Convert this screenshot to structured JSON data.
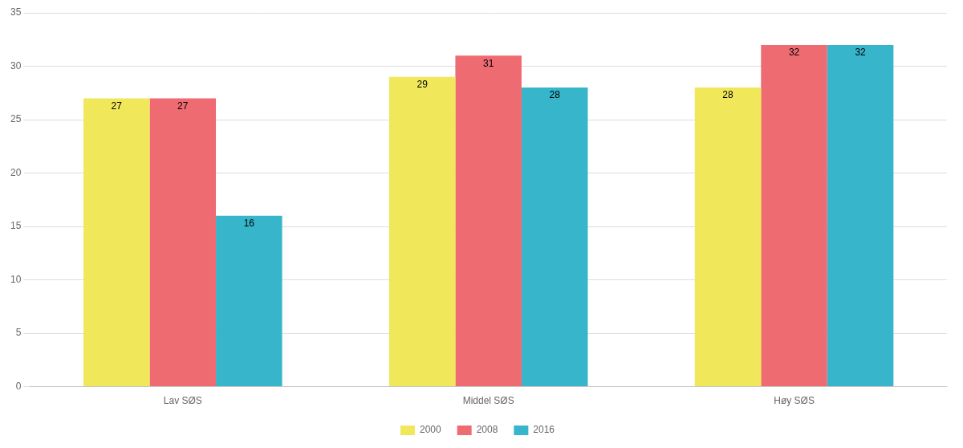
{
  "chart_data": {
    "type": "bar",
    "categories": [
      "Lav SØS",
      "Middel SØS",
      "Høy SØS"
    ],
    "series": [
      {
        "name": "2000",
        "color": "#F0E85A",
        "values": [
          27,
          29,
          28
        ]
      },
      {
        "name": "2008",
        "color": "#EF6B72",
        "values": [
          27,
          31,
          32
        ]
      },
      {
        "name": "2016",
        "color": "#36B5CB",
        "values": [
          16,
          28,
          32
        ]
      }
    ],
    "ylim": [
      0,
      35
    ],
    "yticks": [
      0,
      5,
      10,
      15,
      20,
      25,
      30,
      35
    ],
    "grid": true,
    "legend": "bottom",
    "data_labels": true
  }
}
